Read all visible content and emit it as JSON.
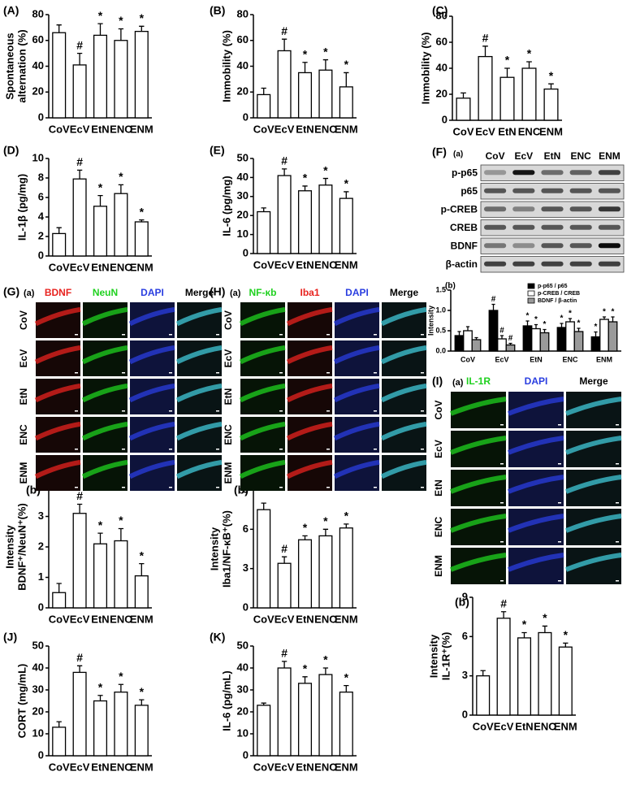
{
  "chart_data": [
    {
      "type": "bar",
      "label": "(A)",
      "ylabel": [
        "Spontaneous",
        "alternation (%)"
      ],
      "categories": [
        "CoV",
        "EcV",
        "EtN",
        "ENC",
        "ENM"
      ],
      "values": [
        66,
        41,
        64,
        60,
        67
      ],
      "errors": [
        6,
        9,
        9,
        9,
        4
      ],
      "markers": [
        null,
        "#",
        "*",
        "*",
        "*"
      ],
      "color": "#ffffff",
      "ylim": [
        0,
        80
      ],
      "yticks": [
        0,
        20,
        40,
        60,
        80
      ]
    },
    {
      "type": "bar",
      "label": "(B)",
      "ylabel": [
        "Immobility (%)"
      ],
      "categories": [
        "CoV",
        "EcV",
        "EtN",
        "ENC",
        "ENM"
      ],
      "values": [
        18,
        52,
        35,
        37,
        24
      ],
      "errors": [
        5,
        9,
        8,
        8,
        11
      ],
      "markers": [
        null,
        "#",
        "*",
        "*",
        "*"
      ],
      "color": "#ffffff",
      "ylim": [
        0,
        80
      ],
      "yticks": [
        0,
        20,
        40,
        60,
        80
      ]
    },
    {
      "type": "bar",
      "label": "(C)",
      "ylabel": [
        "Immobility (%)"
      ],
      "categories": [
        "CoV",
        "EcV",
        "EtN",
        "ENC",
        "ENM"
      ],
      "values": [
        17,
        49,
        33,
        40,
        24
      ],
      "errors": [
        4,
        8,
        7,
        5,
        4
      ],
      "markers": [
        null,
        "#",
        "*",
        "*",
        "*"
      ],
      "color": "#ffffff",
      "ylim": [
        0,
        80
      ],
      "yticks": [
        0,
        20,
        40,
        60,
        80
      ]
    },
    {
      "type": "bar",
      "label": "(D)",
      "ylabel": [
        "IL-1β (pg/mg)"
      ],
      "categories": [
        "CoV",
        "EcV",
        "EtN",
        "ENC",
        "ENM"
      ],
      "values": [
        2.3,
        7.9,
        5.1,
        6.4,
        3.5
      ],
      "errors": [
        0.6,
        0.9,
        1.1,
        0.9,
        0.2
      ],
      "markers": [
        null,
        "#",
        "*",
        "*",
        "*"
      ],
      "color": "#ffffff",
      "ylim": [
        0,
        10
      ],
      "yticks": [
        0,
        2,
        4,
        6,
        8,
        10
      ]
    },
    {
      "type": "bar",
      "label": "(E)",
      "ylabel": [
        "IL-6 (pg/mg)"
      ],
      "categories": [
        "CoV",
        "EcV",
        "EtN",
        "ENC",
        "ENM"
      ],
      "values": [
        22,
        41,
        33,
        36,
        29
      ],
      "errors": [
        2,
        3.5,
        2.5,
        3.5,
        3.5
      ],
      "markers": [
        null,
        "#",
        "*",
        "*",
        "*"
      ],
      "color": "#ffffff",
      "ylim": [
        0,
        50
      ],
      "yticks": [
        0,
        10,
        20,
        30,
        40,
        50
      ]
    },
    {
      "type": "bar",
      "label": "(b)",
      "ylabel": [
        "Intensity"
      ],
      "categories": [
        "CoV",
        "EcV",
        "EtN",
        "ENC",
        "ENM"
      ],
      "series": [
        {
          "name": "p-p65 / p65",
          "color": "#000000",
          "values": [
            0.38,
            1.0,
            0.62,
            0.58,
            0.35
          ],
          "errors": [
            0.1,
            0.15,
            0.12,
            0.1,
            0.12
          ],
          "markers": [
            null,
            "#",
            "*",
            "*",
            "*"
          ]
        },
        {
          "name": "p-CREB / CREB",
          "color": "#ffffff",
          "values": [
            0.5,
            0.3,
            0.55,
            0.72,
            0.78
          ],
          "errors": [
            0.1,
            0.08,
            0.1,
            0.08,
            0.06
          ],
          "markers": [
            null,
            "#",
            "*",
            "*",
            "*"
          ]
        },
        {
          "name": "BDNF / β-actin",
          "color": "#9a9a9a",
          "values": [
            0.28,
            0.15,
            0.45,
            0.48,
            0.72
          ],
          "errors": [
            0.05,
            0.04,
            0.08,
            0.08,
            0.12
          ],
          "markers": [
            null,
            "#",
            "*",
            "*",
            "*"
          ]
        }
      ],
      "ylim": [
        0,
        1.5
      ],
      "yticks": [
        {
          "value": 0,
          "label": "0.0"
        },
        {
          "value": 0.5,
          "label": "0.5"
        },
        {
          "value": 1,
          "label": "1.0"
        },
        {
          "value": 1.5,
          "label": "1.5"
        }
      ],
      "legend": "top-right"
    },
    {
      "type": "bar",
      "label": "(b)",
      "ylabel": [
        "Intensity",
        "BDNF⁺/NeuN⁺(%)"
      ],
      "categories": [
        "CoV",
        "EcV",
        "EtN",
        "ENC",
        "ENM"
      ],
      "values": [
        0.5,
        3.1,
        2.1,
        2.2,
        1.05
      ],
      "errors": [
        0.3,
        0.3,
        0.35,
        0.4,
        0.4
      ],
      "markers": [
        null,
        "#",
        "*",
        "*",
        "*"
      ],
      "color": "#ffffff",
      "ylim": [
        0,
        4
      ],
      "yticks": [
        0,
        1,
        2,
        3
      ]
    },
    {
      "type": "bar",
      "label": "(b)",
      "ylabel": [
        "Intensity",
        "Iba1/NF-κB⁺(%)"
      ],
      "categories": [
        "CoV",
        "EcV",
        "EtN",
        "ENC",
        "ENM"
      ],
      "values": [
        7.5,
        3.4,
        5.2,
        5.5,
        6.1
      ],
      "errors": [
        0.5,
        0.5,
        0.3,
        0.5,
        0.3
      ],
      "markers": [
        null,
        "#",
        "*",
        "*",
        "*"
      ],
      "color": "#ffffff",
      "ylim": [
        0,
        9
      ],
      "yticks": [
        0,
        3,
        6,
        9
      ]
    },
    {
      "type": "bar",
      "label": "(b)",
      "ylabel": [
        "Intensity",
        "IL-1R⁺(%)"
      ],
      "categories": [
        "CoV",
        "EcV",
        "EtN",
        "ENC",
        "ENM"
      ],
      "values": [
        3.0,
        7.4,
        5.9,
        6.3,
        5.2
      ],
      "errors": [
        0.4,
        0.5,
        0.4,
        0.5,
        0.3
      ],
      "markers": [
        null,
        "#",
        "*",
        "*",
        "*"
      ],
      "color": "#ffffff",
      "ylim": [
        0,
        9
      ],
      "yticks": [
        0,
        3,
        6,
        9
      ]
    },
    {
      "type": "bar",
      "label": "(J)",
      "ylabel": [
        "CORT (mg/mL)"
      ],
      "categories": [
        "CoV",
        "EcV",
        "EtN",
        "ENC",
        "ENM"
      ],
      "values": [
        13,
        38,
        25,
        29,
        23
      ],
      "errors": [
        2.5,
        3,
        2.5,
        3.5,
        2.5
      ],
      "markers": [
        null,
        "#",
        "*",
        "*",
        "*"
      ],
      "color": "#ffffff",
      "ylim": [
        0,
        50
      ],
      "yticks": [
        0,
        10,
        20,
        30,
        40,
        50
      ]
    },
    {
      "type": "bar",
      "label": "(K)",
      "ylabel": [
        "IL-6 (pg/mL)"
      ],
      "categories": [
        "CoV",
        "EcV",
        "EtN",
        "ENC",
        "ENM"
      ],
      "values": [
        23,
        40,
        33,
        37,
        29
      ],
      "errors": [
        1,
        3,
        3,
        3,
        3
      ],
      "markers": [
        null,
        "#",
        "*",
        "*",
        "*"
      ],
      "color": "#ffffff",
      "ylim": [
        0,
        50
      ],
      "yticks": [
        0,
        10,
        20,
        30,
        40,
        50
      ]
    }
  ],
  "blot": {
    "label": "(F)",
    "sublabel": "(a)",
    "lanes": [
      "CoV",
      "EcV",
      "EtN",
      "ENC",
      "ENM"
    ],
    "rows": [
      "p-p65",
      "p65",
      "p-CREB",
      "CREB",
      "BDNF",
      "β-actin"
    ]
  },
  "micrographs": [
    {
      "label": "(G)",
      "sublabel": "(a)",
      "channels": [
        {
          "name": "BDNF",
          "color": "#e8231f"
        },
        {
          "name": "NeuN",
          "color": "#1fd11f"
        },
        {
          "name": "DAPI",
          "color": "#2a3ee0"
        },
        {
          "name": "Merge",
          "color": "#000000"
        }
      ],
      "rows": [
        "CoV",
        "EcV",
        "EtN",
        "ENC",
        "ENM"
      ]
    },
    {
      "label": "(H)",
      "sublabel": "(a)",
      "channels": [
        {
          "name": "NF-κb",
          "color": "#1fd11f"
        },
        {
          "name": "Iba1",
          "color": "#e8231f"
        },
        {
          "name": "DAPI",
          "color": "#2a3ee0"
        },
        {
          "name": "Merge",
          "color": "#000000"
        }
      ],
      "rows": [
        "CoV",
        "EcV",
        "EtN",
        "ENC",
        "ENM"
      ]
    },
    {
      "label": "(I)",
      "sublabel": "(a)",
      "channels": [
        {
          "name": "IL-1R",
          "color": "#1fd11f"
        },
        {
          "name": "DAPI",
          "color": "#2a3ee0"
        },
        {
          "name": "Merge",
          "color": "#000000"
        }
      ],
      "rows": [
        "CoV",
        "EcV",
        "EtN",
        "ENC",
        "ENM"
      ]
    }
  ]
}
